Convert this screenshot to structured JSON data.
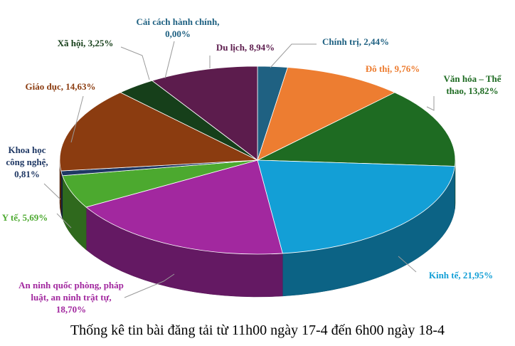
{
  "chart_data": {
    "type": "pie3d",
    "title": "Thống kê tin bài đăng tải từ 11h00 ngày 17-4 đến 6h00 ngày 18-4",
    "values": [
      2.44,
      9.76,
      13.82,
      21.95,
      18.7,
      5.69,
      0.81,
      14.63,
      3.25,
      0.0,
      8.94
    ],
    "value_labels": [
      "Chính trị, 2,44%",
      "Đô thị, 9,76%",
      "Văn hóa – Thể\nthao, 13,82%",
      "Kinh tế, 21,95%",
      "An ninh quốc phòng, pháp\nluật, an ninh trật tự,\n18,70%",
      "Y tế, 5,69%",
      "Khoa học\ncông nghệ,\n0,81%",
      "Giáo dục, 14,63%",
      "Xã hội, 3,25%",
      "Cải cách hành chính,\n0,00%",
      "Du lịch, 8,94%"
    ],
    "colors": [
      "#1f6182",
      "#ed7d31",
      "#1e6b22",
      "#139fd6",
      "#a2289f",
      "#4ca92f",
      "#1f3864",
      "#8b3c10",
      "#163f1a",
      "#7f7f7f",
      "#5c1c4d"
    ]
  }
}
